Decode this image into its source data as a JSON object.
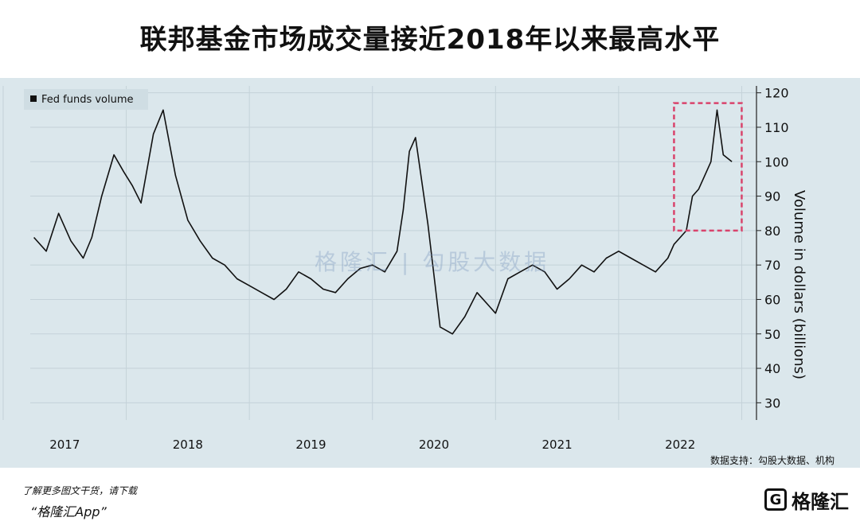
{
  "title": "联邦基金市场成交量接近2018年以来最高水平",
  "source": "数据支持：勾股大数据、机构",
  "footer": {
    "download_text": "了解更多图文干货，请下载",
    "app_name": "“格隆汇App”",
    "logo_text": "格隆汇"
  },
  "colors": {
    "line": "#111111",
    "highlight": "#d9436b",
    "background": "#dbe7ec"
  },
  "chart_data": {
    "type": "line",
    "title": "",
    "ylabel": "Volume in dollars (billions)",
    "xlabel": "",
    "ylim": [
      25,
      122
    ],
    "y_ticks": [
      30,
      40,
      50,
      60,
      70,
      80,
      90,
      100,
      110,
      120
    ],
    "x_ticks": [
      "2017",
      "2018",
      "2019",
      "2020",
      "2021",
      "2022"
    ],
    "grid": true,
    "legend_position": "top-left",
    "series": [
      {
        "name": "Fed funds volume",
        "x": [
          2016.75,
          2016.85,
          2016.95,
          2017.05,
          2017.15,
          2017.22,
          2017.3,
          2017.4,
          2017.48,
          2017.55,
          2017.62,
          2017.66,
          2017.72,
          2017.8,
          2017.9,
          2018.0,
          2018.1,
          2018.2,
          2018.3,
          2018.4,
          2018.5,
          2018.6,
          2018.7,
          2018.8,
          2018.9,
          2019.0,
          2019.1,
          2019.2,
          2019.3,
          2019.4,
          2019.5,
          2019.6,
          2019.7,
          2019.75,
          2019.8,
          2019.85,
          2019.95,
          2020.05,
          2020.15,
          2020.25,
          2020.35,
          2020.45,
          2020.5,
          2020.6,
          2020.7,
          2020.8,
          2020.9,
          2021.0,
          2021.1,
          2021.2,
          2021.3,
          2021.4,
          2021.5,
          2021.6,
          2021.7,
          2021.8,
          2021.9,
          2021.95,
          2022.0,
          2022.05,
          2022.1,
          2022.15,
          2022.2,
          2022.25,
          2022.3,
          2022.35,
          2022.42
        ],
        "values": [
          78,
          74,
          85,
          77,
          72,
          78,
          90,
          102,
          97,
          93,
          88,
          96,
          108,
          115,
          96,
          83,
          77,
          72,
          70,
          66,
          64,
          62,
          60,
          63,
          68,
          66,
          63,
          62,
          66,
          69,
          70,
          68,
          74,
          86,
          103,
          107,
          82,
          52,
          50,
          55,
          62,
          58,
          56,
          66,
          68,
          70,
          68,
          63,
          66,
          70,
          68,
          72,
          74,
          72,
          70,
          68,
          72,
          76,
          78,
          80,
          90,
          92,
          96,
          100,
          115,
          102,
          100
        ]
      }
    ],
    "highlight_box": {
      "x_range": [
        2021.95,
        2022.5
      ],
      "y_range": [
        80,
        117
      ]
    }
  }
}
